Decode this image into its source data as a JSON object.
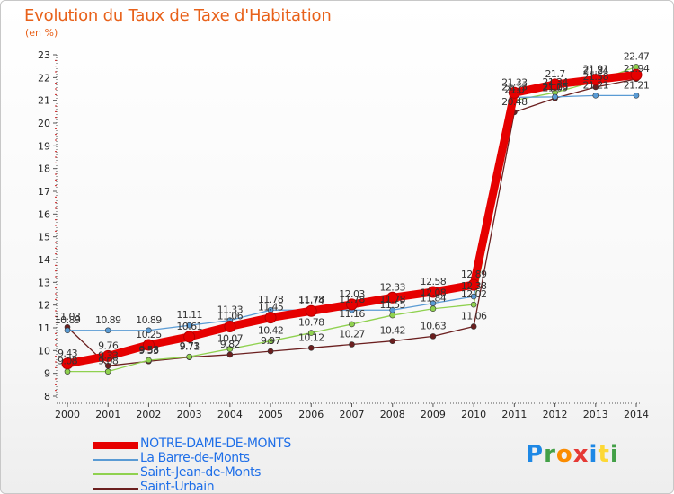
{
  "title": "Evolution du Taux de Taxe d'Habitation",
  "unit_label": "(en %)",
  "logo": {
    "text": "Proxiti",
    "colors": [
      "#1e88e5",
      "#43a047",
      "#fb8c00",
      "#e53935",
      "#1e88e5",
      "#fdd835",
      "#43a047"
    ]
  },
  "chart_data": {
    "type": "line",
    "x": [
      2000,
      2001,
      2002,
      2003,
      2004,
      2005,
      2006,
      2007,
      2008,
      2009,
      2010,
      2011,
      2012,
      2013,
      2014
    ],
    "ylim": [
      8,
      23
    ],
    "yticks": [
      8,
      9,
      10,
      11,
      12,
      13,
      14,
      15,
      16,
      17,
      18,
      19,
      20,
      21,
      22,
      23
    ],
    "grid": false,
    "legend_position": "bottom-left",
    "series": [
      {
        "name": "NOTRE-DAME-DE-MONTS",
        "color": "#e60000",
        "values": [
          9.43,
          9.76,
          10.25,
          10.61,
          11.06,
          11.45,
          11.74,
          12.03,
          12.33,
          12.58,
          12.89,
          21.33,
          21.7,
          21.91,
          22.12
        ],
        "labels": [
          "9.43",
          "9.76",
          "10.25",
          "10.61",
          "11.06",
          "11.45",
          "11.74",
          "12.03",
          "12.33",
          "12.58",
          "12.89",
          "21.33",
          "21.7",
          "21.91",
          ""
        ]
      },
      {
        "name": "La Barre-de-Monts",
        "color": "#5a9bd4",
        "values": [
          10.89,
          10.89,
          10.89,
          11.11,
          11.33,
          11.78,
          11.78,
          11.78,
          11.78,
          12.08,
          12.38,
          21.13,
          21.15,
          21.21,
          21.21
        ],
        "labels": [
          "10.89",
          "10.89",
          "10.89",
          "11.11",
          "11.33",
          "11.78",
          "11.78",
          "11.78",
          "11.78",
          "12.08",
          "12.38",
          "21.13",
          "21.15",
          "21.21",
          "21.21"
        ]
      },
      {
        "name": "Saint-Jean-de-Monts",
        "color": "#8fd14f",
        "values": [
          9.08,
          9.08,
          9.58,
          9.73,
          10.07,
          10.42,
          10.78,
          11.16,
          11.55,
          11.84,
          12.02,
          21.0,
          21.34,
          21.84,
          22.47
        ],
        "labels": [
          "9.08",
          "9.08",
          "9.58",
          "9.73",
          "10.07",
          "10.42",
          "10.78",
          "11.16",
          "11.55",
          "11.84",
          "12.02",
          "21.0",
          "21.34",
          "21.84",
          "22.47"
        ]
      },
      {
        "name": "Saint-Urbain",
        "color": "#6b1f1f",
        "values": [
          11.03,
          9.33,
          9.53,
          9.71,
          9.82,
          9.97,
          10.12,
          10.27,
          10.42,
          10.63,
          11.06,
          20.48,
          21.09,
          21.58,
          21.94
        ],
        "labels": [
          "11.03",
          "9.33",
          "9.53",
          "9.71",
          "9.82",
          "9.97",
          "10.12",
          "10.27",
          "10.42",
          "10.63",
          "11.06",
          "20.48",
          "21.09",
          "21.58",
          "21.94"
        ]
      }
    ]
  }
}
